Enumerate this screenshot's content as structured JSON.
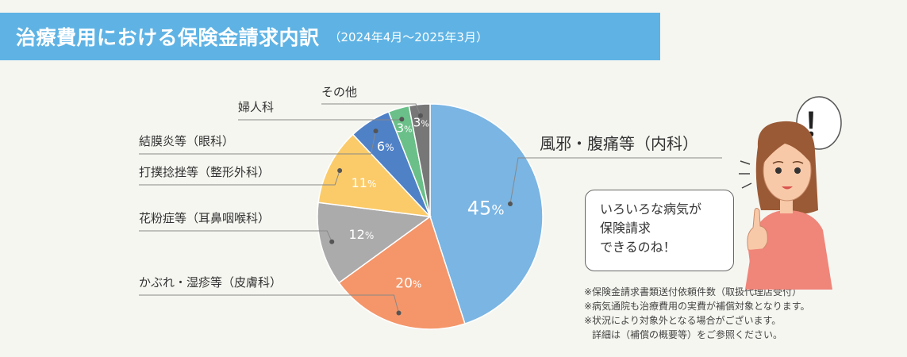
{
  "header": {
    "title": "治療費用における保険金請求内訳",
    "period": "（2024年4月～2025年3月）"
  },
  "chart_data": {
    "type": "pie",
    "title": "治療費用における保険金請求内訳",
    "subtitle": "（2024年4月～2025年3月）",
    "unit": "%",
    "slices": [
      {
        "label": "風邪・腹痛等（内科）",
        "value": 45,
        "color": "#7ab5e3"
      },
      {
        "label": "かぶれ・湿疹等（皮膚科）",
        "value": 20,
        "color": "#f4966a"
      },
      {
        "label": "花粉症等（耳鼻咽喉科）",
        "value": 12,
        "color": "#ababab"
      },
      {
        "label": "打撲捻挫等（整形外科）",
        "value": 11,
        "color": "#fbcb69"
      },
      {
        "label": "結膜炎等（眼科）",
        "value": 6,
        "color": "#4f81c7"
      },
      {
        "label": "婦人科",
        "value": 3,
        "color": "#6ac088"
      },
      {
        "label": "その他",
        "value": 3,
        "color": "#777777"
      }
    ]
  },
  "bubble": {
    "lines": [
      "いろいろな病気が",
      "保険請求",
      "できるのね！"
    ],
    "exclamation": "！"
  },
  "notes": [
    "※保険金請求書類送付依頼件数（取扱代理店受付）",
    "※病気通院も治療費用の実費が補償対象となります。",
    "※状況により対象外となる場合がございます。",
    "詳細は（補償の概要等）をご参照ください。"
  ]
}
